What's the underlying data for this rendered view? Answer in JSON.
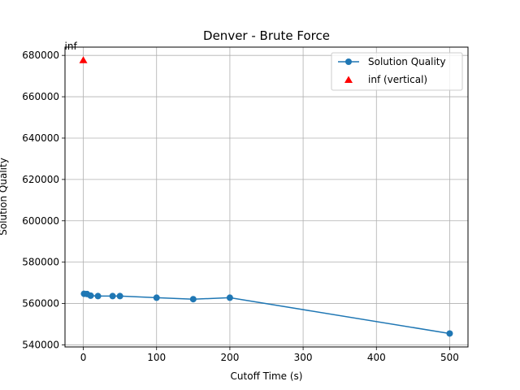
{
  "chart_data": {
    "type": "line",
    "title": "Denver - Brute Force",
    "xlabel": "Cutoff Time (s)",
    "ylabel": "Solution Quality",
    "xlim": [
      -25,
      525
    ],
    "ylim": [
      539000,
      684000
    ],
    "xticks": [
      0,
      100,
      200,
      300,
      400,
      500
    ],
    "yticks": [
      540000,
      560000,
      580000,
      600000,
      620000,
      640000,
      660000,
      680000
    ],
    "grid": true,
    "legend_position": "upper right",
    "series": [
      {
        "name": "Solution Quality",
        "color": "#1f77b4",
        "marker": "circle",
        "x": [
          1,
          5,
          10,
          20,
          40,
          50,
          100,
          150,
          200,
          500
        ],
        "y": [
          564700,
          564600,
          563800,
          563600,
          563600,
          563600,
          562800,
          562100,
          562800,
          545500
        ]
      },
      {
        "name": "inf (vertical)",
        "color": "#ff0000",
        "marker": "triangle",
        "x": [
          0
        ],
        "y": [
          677800
        ]
      }
    ],
    "annotations": [
      {
        "text": "inf",
        "x": 0,
        "y": 677800
      }
    ]
  }
}
